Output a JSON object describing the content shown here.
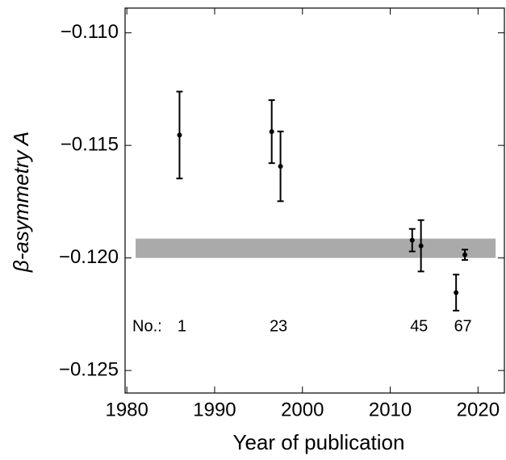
{
  "chart_data": {
    "type": "errorbar",
    "xlabel": "Year of publication",
    "ylabel": "β-asymmetry A",
    "x": [
      1986,
      1996.5,
      1997.5,
      2012.5,
      2013.5,
      2017.5,
      2018.5
    ],
    "values": [
      -0.11454,
      -0.11439,
      -0.11593,
      -0.11921,
      -0.11946,
      -0.12154,
      -0.11986
    ],
    "errors": [
      0.00193,
      0.0014,
      0.00155,
      0.0005,
      0.00114,
      0.0008,
      0.00023
    ],
    "color": "#000000",
    "annotation": "No.:",
    "point_labels": [
      "1",
      "2",
      "3",
      "4",
      "5",
      "6",
      "7"
    ],
    "band": {
      "x": [
        1981,
        2022
      ],
      "y": [
        -0.11914,
        -0.12
      ],
      "color": "#aaaaaa"
    },
    "xlim": [
      1979.8,
      2023
    ],
    "ylim": [
      -0.126,
      -0.1089
    ],
    "xticks": [
      1980,
      1990,
      2000,
      2010,
      2020
    ],
    "yticks": [
      {
        "value": -0.11,
        "label": "−0.110"
      },
      {
        "value": -0.115,
        "label": "−0.115"
      },
      {
        "value": -0.12,
        "label": "−0.120"
      },
      {
        "value": -0.125,
        "label": "−0.125"
      }
    ]
  }
}
